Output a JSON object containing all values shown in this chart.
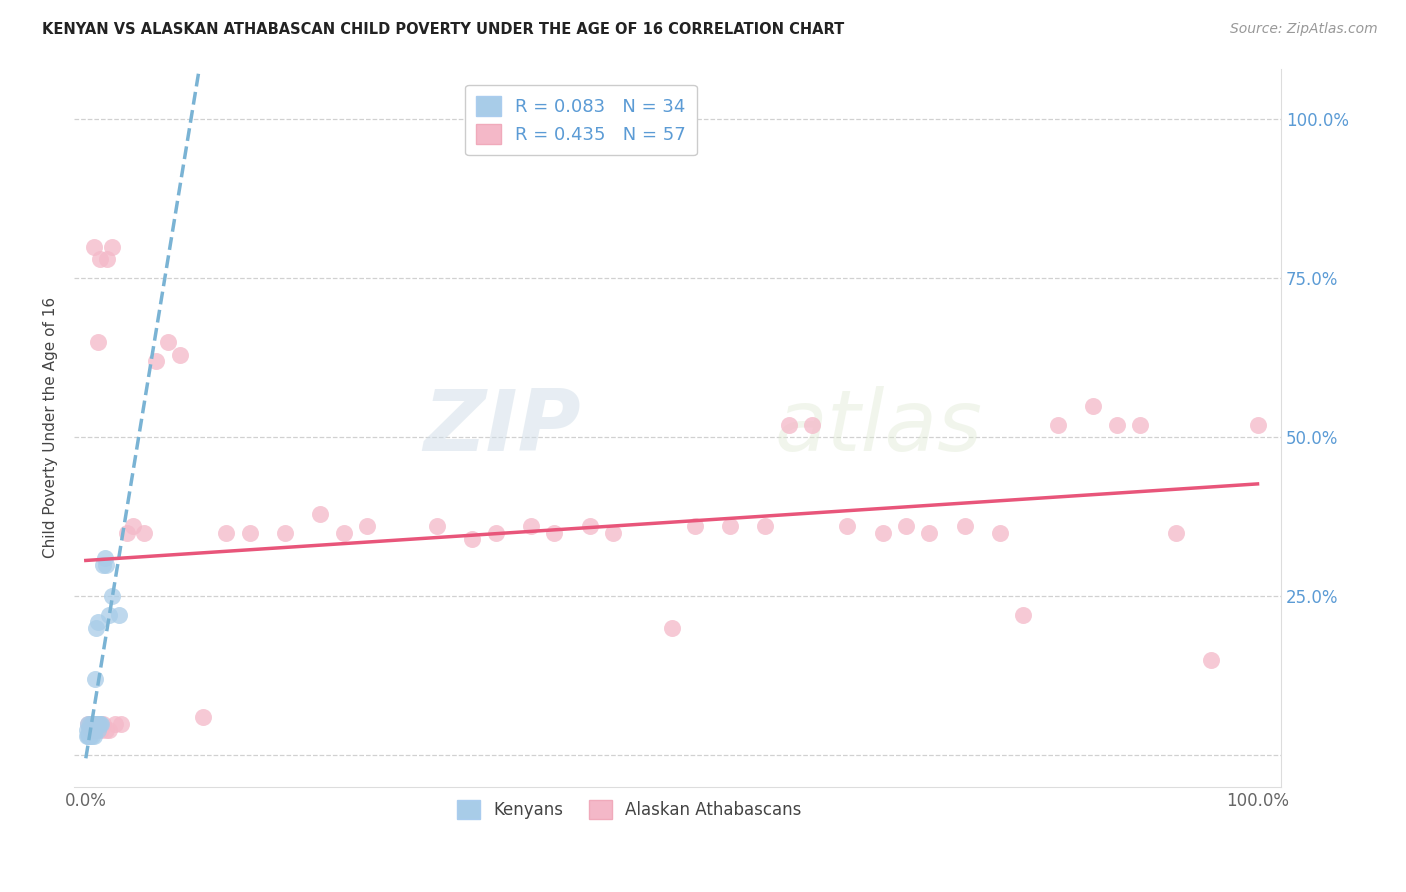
{
  "title": "KENYAN VS ALASKAN ATHABASCAN CHILD POVERTY UNDER THE AGE OF 16 CORRELATION CHART",
  "source": "Source: ZipAtlas.com",
  "ylabel": "Child Poverty Under the Age of 16",
  "legend_label1": "Kenyans",
  "legend_label2": "Alaskan Athabascans",
  "R1": "0.083",
  "N1": 34,
  "R2": "0.435",
  "N2": 57,
  "watermark_zip": "ZIP",
  "watermark_atlas": "atlas",
  "blue_scatter_color": "#a8cce8",
  "blue_line_color": "#7ab3d4",
  "pink_scatter_color": "#f4b8c8",
  "pink_line_color": "#e8557a",
  "kenyan_x": [
    0.001,
    0.001,
    0.002,
    0.002,
    0.003,
    0.003,
    0.004,
    0.004,
    0.004,
    0.005,
    0.005,
    0.005,
    0.006,
    0.006,
    0.007,
    0.007,
    0.007,
    0.008,
    0.008,
    0.008,
    0.009,
    0.009,
    0.01,
    0.01,
    0.01,
    0.011,
    0.012,
    0.013,
    0.015,
    0.016,
    0.017,
    0.02,
    0.022,
    0.028
  ],
  "kenyan_y": [
    0.04,
    0.03,
    0.05,
    0.03,
    0.04,
    0.03,
    0.05,
    0.04,
    0.03,
    0.05,
    0.04,
    0.03,
    0.05,
    0.04,
    0.05,
    0.04,
    0.03,
    0.05,
    0.04,
    0.12,
    0.05,
    0.2,
    0.05,
    0.04,
    0.21,
    0.05,
    0.05,
    0.05,
    0.3,
    0.31,
    0.3,
    0.22,
    0.25,
    0.22
  ],
  "athabascan_x": [
    0.002,
    0.004,
    0.005,
    0.006,
    0.007,
    0.008,
    0.009,
    0.01,
    0.012,
    0.013,
    0.015,
    0.017,
    0.018,
    0.02,
    0.022,
    0.025,
    0.03,
    0.035,
    0.04,
    0.05,
    0.06,
    0.07,
    0.08,
    0.1,
    0.12,
    0.14,
    0.17,
    0.2,
    0.22,
    0.24,
    0.3,
    0.33,
    0.35,
    0.38,
    0.4,
    0.43,
    0.45,
    0.5,
    0.52,
    0.55,
    0.58,
    0.6,
    0.62,
    0.65,
    0.68,
    0.7,
    0.72,
    0.75,
    0.78,
    0.8,
    0.83,
    0.86,
    0.88,
    0.9,
    0.93,
    0.96,
    1.0
  ],
  "athabascan_y": [
    0.05,
    0.04,
    0.05,
    0.04,
    0.8,
    0.05,
    0.04,
    0.65,
    0.78,
    0.04,
    0.05,
    0.04,
    0.78,
    0.04,
    0.8,
    0.05,
    0.05,
    0.35,
    0.36,
    0.35,
    0.62,
    0.65,
    0.63,
    0.06,
    0.35,
    0.35,
    0.35,
    0.38,
    0.35,
    0.36,
    0.36,
    0.34,
    0.35,
    0.36,
    0.35,
    0.36,
    0.35,
    0.2,
    0.36,
    0.36,
    0.36,
    0.52,
    0.52,
    0.36,
    0.35,
    0.36,
    0.35,
    0.36,
    0.35,
    0.22,
    0.52,
    0.55,
    0.52,
    0.52,
    0.35,
    0.15,
    0.52
  ],
  "xlim": [
    -0.01,
    1.02
  ],
  "ylim": [
    -0.05,
    1.08
  ],
  "ytick_positions": [
    0.0,
    0.25,
    0.5,
    0.75,
    1.0
  ],
  "ytick_labels": [
    "",
    "25.0%",
    "50.0%",
    "75.0%",
    "100.0%"
  ],
  "xtick_positions": [
    0.0,
    1.0
  ],
  "xtick_labels": [
    "0.0%",
    "100.0%"
  ],
  "background_color": "#ffffff",
  "grid_color": "#cccccc"
}
